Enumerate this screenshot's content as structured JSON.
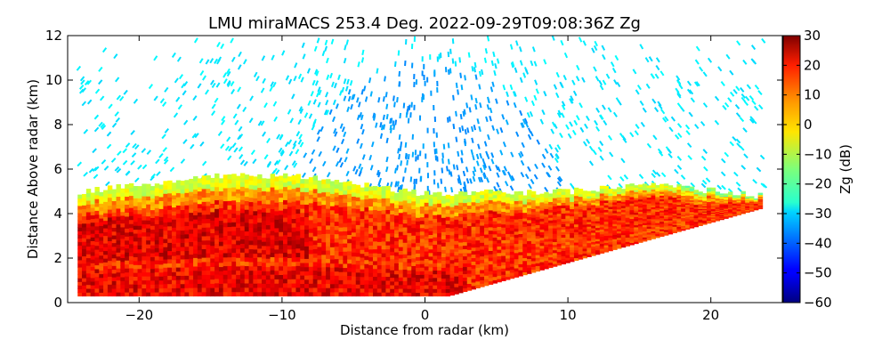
{
  "chart_data": {
    "type": "heatmap",
    "title": "LMU miraMACS 253.4 Deg. 2022-09-29T09:08:36Z  Zg",
    "xlabel": "Distance from radar (km)",
    "ylabel": "Distance Above radar  (km)",
    "xlim": [
      -25,
      25
    ],
    "ylim": [
      0,
      12
    ],
    "x_ticks": [
      {
        "value": -20,
        "label": "−20"
      },
      {
        "value": -10,
        "label": "−10"
      },
      {
        "value": 0,
        "label": "0"
      },
      {
        "value": 10,
        "label": "10"
      },
      {
        "value": 20,
        "label": "20"
      }
    ],
    "y_ticks": [
      {
        "value": 0,
        "label": "0"
      },
      {
        "value": 2,
        "label": "2"
      },
      {
        "value": 4,
        "label": "4"
      },
      {
        "value": 6,
        "label": "6"
      },
      {
        "value": 8,
        "label": "8"
      },
      {
        "value": 10,
        "label": "10"
      },
      {
        "value": 12,
        "label": "12"
      }
    ],
    "colorbar": {
      "label": "Zg (dB)",
      "range": [
        -60,
        30
      ],
      "ticks": [
        {
          "value": 30,
          "label": "30"
        },
        {
          "value": 20,
          "label": "20"
        },
        {
          "value": 10,
          "label": "10"
        },
        {
          "value": 0,
          "label": "0"
        },
        {
          "value": -10,
          "label": "−10"
        },
        {
          "value": -20,
          "label": "−20"
        },
        {
          "value": -30,
          "label": "−30"
        },
        {
          "value": -40,
          "label": "−40"
        },
        {
          "value": -50,
          "label": "−50"
        },
        {
          "value": -60,
          "label": "−60"
        }
      ],
      "colormap": "jet"
    },
    "field": {
      "description_free": true,
      "scan_edge_left_top": [
        -24.5,
        5.0
      ],
      "scan_edge_right_top": [
        23.5,
        4.2
      ],
      "dense_layer_top": [
        [
          -24,
          5.0
        ],
        [
          -13,
          5.8
        ],
        [
          -8,
          5.6
        ],
        [
          0,
          4.9
        ],
        [
          10,
          5.0
        ],
        [
          16,
          5.3
        ],
        [
          23.5,
          4.8
        ]
      ],
      "noise_top_km": 12,
      "layer_dB_range": [
        -10,
        25
      ],
      "noise_dB_range": [
        -35,
        -25
      ]
    }
  }
}
